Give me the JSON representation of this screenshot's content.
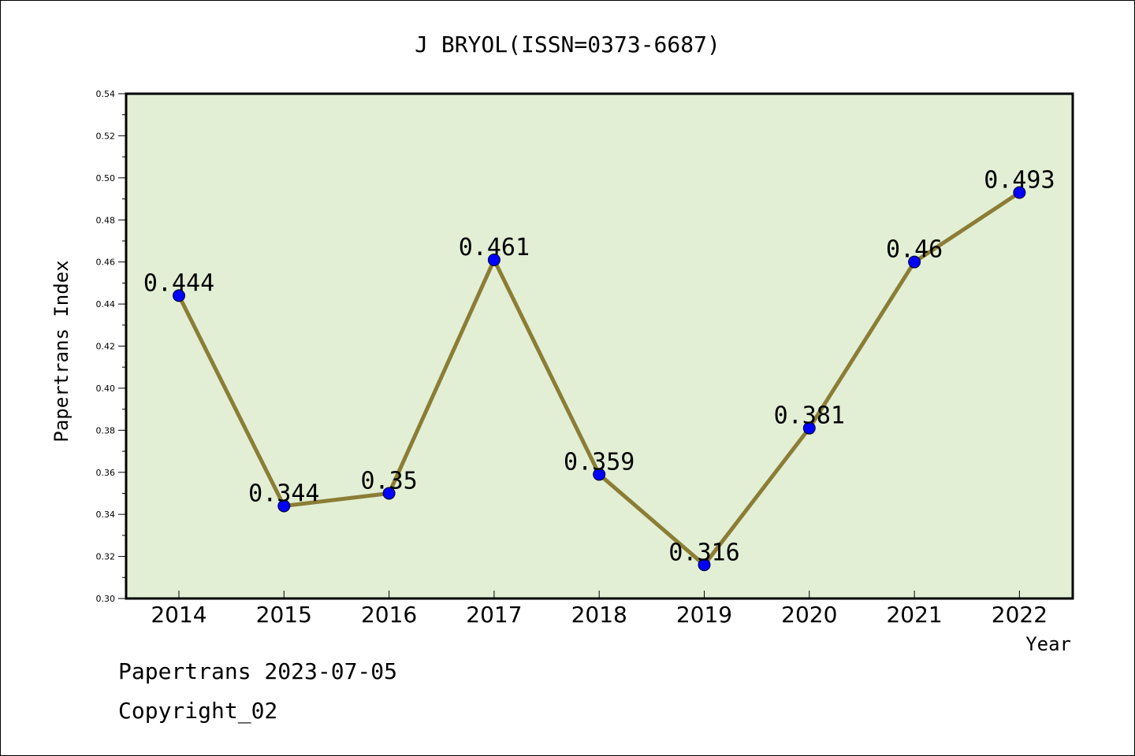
{
  "chart_data": {
    "type": "line",
    "title": "J BRYOL(ISSN=0373-6687)",
    "xlabel": "Year",
    "ylabel": "Papertrans Index",
    "categories": [
      "2014",
      "2015",
      "2016",
      "2017",
      "2018",
      "2019",
      "2020",
      "2021",
      "2022"
    ],
    "values": [
      0.444,
      0.344,
      0.35,
      0.461,
      0.359,
      0.316,
      0.381,
      0.46,
      0.493
    ],
    "data_labels": [
      "0.444",
      "0.344",
      "0.35",
      "0.461",
      "0.359",
      "0.316",
      "0.381",
      "0.46",
      "0.493"
    ],
    "ylim": [
      0.3,
      0.54
    ],
    "yticks": [
      "0.30",
      "0.32",
      "0.34",
      "0.36",
      "0.38",
      "0.40",
      "0.42",
      "0.44",
      "0.46",
      "0.48",
      "0.50",
      "0.52",
      "0.54"
    ],
    "grid": false,
    "colors": {
      "plot_background": "#e2efd5",
      "line": "#8b7d35",
      "marker": "#0000ff"
    }
  },
  "footer": {
    "date_line": "Papertrans 2023-07-05",
    "copyright": "Copyright_02"
  }
}
